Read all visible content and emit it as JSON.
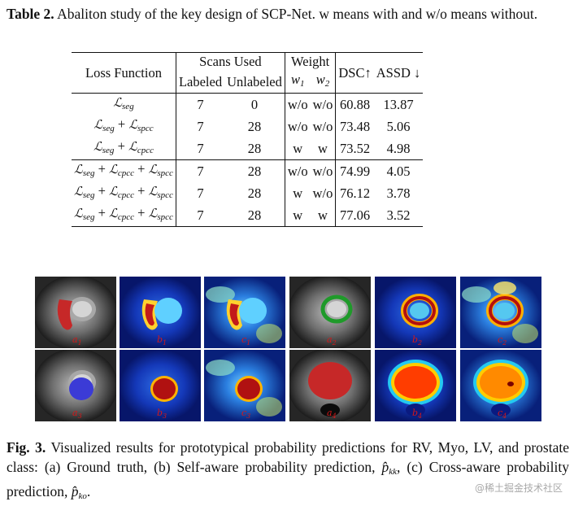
{
  "table": {
    "caption_label": "Table 2.",
    "caption_text": "Abaliton study of the key design of SCP-Net. w means with and w/o means without.",
    "headers": {
      "loss_function": "Loss Function",
      "scans_used": "Scans Used",
      "weight": "Weight",
      "labeled": "Labeled",
      "unlabeled": "Unlabeled",
      "w1": "w",
      "w1_sub": "1",
      "w2": "w",
      "w2_sub": "2",
      "dsc": "DSC↑",
      "assd": "ASSD ↓"
    },
    "loss_terms": {
      "L": "ℒ",
      "seg": "seg",
      "spcc": "spcc",
      "cpcc": "cpcc",
      "plus": "+"
    },
    "rows": [
      {
        "loss": [
          "seg"
        ],
        "labeled": "7",
        "unlabeled": "0",
        "w1": "w/o",
        "w2": "w/o",
        "dsc": "60.88",
        "assd": "13.87"
      },
      {
        "loss": [
          "seg",
          "spcc"
        ],
        "labeled": "7",
        "unlabeled": "28",
        "w1": "w/o",
        "w2": "w/o",
        "dsc": "73.48",
        "assd": "5.06"
      },
      {
        "loss": [
          "seg",
          "cpcc"
        ],
        "labeled": "7",
        "unlabeled": "28",
        "w1": "w",
        "w2": "w",
        "dsc": "73.52",
        "assd": "4.98"
      },
      {
        "loss": [
          "seg",
          "cpcc",
          "spcc"
        ],
        "labeled": "7",
        "unlabeled": "28",
        "w1": "w/o",
        "w2": "w/o",
        "dsc": "74.99",
        "assd": "4.05"
      },
      {
        "loss": [
          "seg",
          "cpcc",
          "spcc"
        ],
        "labeled": "7",
        "unlabeled": "28",
        "w1": "w",
        "w2": "w/o",
        "dsc": "76.12",
        "assd": "3.78"
      },
      {
        "loss": [
          "seg",
          "cpcc",
          "spcc"
        ],
        "labeled": "7",
        "unlabeled": "28",
        "w1": "w",
        "w2": "w",
        "dsc": "77.06",
        "assd": "3.52"
      }
    ]
  },
  "figure": {
    "panels_row1": [
      {
        "label": "a",
        "sub": "1",
        "kind": "gt-rv"
      },
      {
        "label": "b",
        "sub": "1",
        "kind": "prob-rv"
      },
      {
        "label": "c",
        "sub": "1",
        "kind": "cross-rv"
      },
      {
        "label": "a",
        "sub": "2",
        "kind": "gt-myo"
      },
      {
        "label": "b",
        "sub": "2",
        "kind": "prob-myo"
      },
      {
        "label": "c",
        "sub": "2",
        "kind": "cross-myo"
      }
    ],
    "panels_row2": [
      {
        "label": "a",
        "sub": "3",
        "kind": "gt-lv"
      },
      {
        "label": "b",
        "sub": "3",
        "kind": "prob-lv"
      },
      {
        "label": "c",
        "sub": "3",
        "kind": "cross-lv"
      },
      {
        "label": "a",
        "sub": "4",
        "kind": "gt-prostate"
      },
      {
        "label": "b",
        "sub": "4",
        "kind": "prob-prostate"
      },
      {
        "label": "c",
        "sub": "4",
        "kind": "cross-prostate"
      }
    ],
    "caption_label": "Fig. 3.",
    "caption_text": "Visualized results for prototypical probability predictions for RV, Myo, LV, and prostate class: (a) Ground truth, (b) Self-aware probability prediction,",
    "caption_math1": "p̂",
    "caption_math1_sub": "kk",
    "caption_mid": ", (c) Cross-aware probability prediction,",
    "caption_math2": "p̂",
    "caption_math2_sub": "ko",
    "caption_end": "."
  },
  "watermark": "@稀土掘金技术社区"
}
